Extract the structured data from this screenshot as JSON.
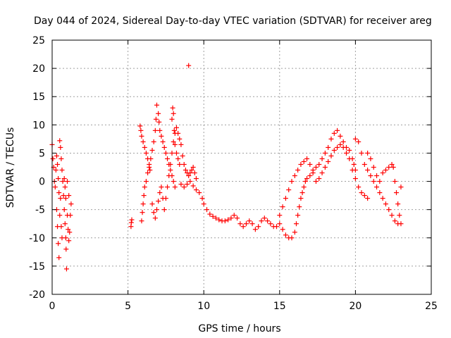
{
  "chart_data": {
    "type": "scatter",
    "title": "Day 044 of 2024, Sidereal Day-to-day VTEC variation (SDTVAR) for receiver areg",
    "xlabel": "GPS time / hours",
    "ylabel": "SDTVAR / TECUs",
    "xlim": [
      0,
      25
    ],
    "ylim": [
      -20,
      25
    ],
    "x_ticks": [
      0,
      5,
      10,
      15,
      20,
      25
    ],
    "x_tick_labels": [
      "0",
      "5",
      "10",
      "15",
      "20",
      "25"
    ],
    "y_ticks": [
      -20,
      -15,
      -10,
      -5,
      0,
      5,
      10,
      15,
      20,
      25
    ],
    "y_tick_labels": [
      "-20",
      "-15",
      "-10",
      "-5",
      "0",
      "5",
      "10",
      "15",
      "20",
      "25"
    ],
    "grid": true,
    "marker": "+",
    "marker_color": "#ff0000",
    "series": [
      {
        "name": "SDTVAR",
        "points": [
          [
            0.0,
            6.5
          ],
          [
            0.05,
            4.0
          ],
          [
            0.1,
            2.5
          ],
          [
            0.15,
            0.0
          ],
          [
            0.2,
            -1.0
          ],
          [
            0.25,
            2.0
          ],
          [
            0.3,
            4.5
          ],
          [
            0.35,
            3.0
          ],
          [
            0.4,
            0.5
          ],
          [
            0.45,
            -2.0
          ],
          [
            0.3,
            -5.0
          ],
          [
            0.35,
            -8.0
          ],
          [
            0.4,
            -11.0
          ],
          [
            0.45,
            -13.5
          ],
          [
            0.5,
            -6.0
          ],
          [
            0.55,
            -3.0
          ],
          [
            0.6,
            -8.0
          ],
          [
            0.65,
            -10.0
          ],
          [
            0.5,
            7.2
          ],
          [
            0.55,
            6.0
          ],
          [
            0.6,
            4.0
          ],
          [
            0.65,
            2.0
          ],
          [
            0.7,
            0.0
          ],
          [
            0.75,
            -2.5
          ],
          [
            0.8,
            -5.0
          ],
          [
            0.85,
            -7.5
          ],
          [
            0.9,
            -10.0
          ],
          [
            0.92,
            -12.0
          ],
          [
            0.95,
            -15.5
          ],
          [
            0.8,
            0.5
          ],
          [
            0.85,
            -1.0
          ],
          [
            0.9,
            -3.0
          ],
          [
            1.0,
            -6.0
          ],
          [
            1.05,
            -8.5
          ],
          [
            1.1,
            -10.5
          ],
          [
            1.15,
            -9.0
          ],
          [
            1.2,
            -6.0
          ],
          [
            1.25,
            -4.0
          ],
          [
            1.1,
            -2.5
          ],
          [
            1.0,
            0.0
          ],
          [
            5.2,
            -8.0
          ],
          [
            5.22,
            -7.3
          ],
          [
            5.25,
            -6.8
          ],
          [
            5.8,
            9.8
          ],
          [
            5.85,
            9.0
          ],
          [
            5.9,
            8.0
          ],
          [
            6.0,
            7.0
          ],
          [
            6.1,
            6.0
          ],
          [
            6.2,
            5.0
          ],
          [
            6.3,
            4.0
          ],
          [
            6.4,
            3.0
          ],
          [
            6.45,
            2.0
          ],
          [
            5.9,
            -7.0
          ],
          [
            5.95,
            -5.5
          ],
          [
            6.0,
            -4.0
          ],
          [
            6.05,
            -2.5
          ],
          [
            6.1,
            -1.0
          ],
          [
            6.2,
            0.0
          ],
          [
            6.3,
            1.5
          ],
          [
            6.4,
            2.5
          ],
          [
            6.5,
            4.0
          ],
          [
            6.6,
            5.5
          ],
          [
            6.7,
            7.0
          ],
          [
            6.8,
            9.0
          ],
          [
            6.85,
            11.0
          ],
          [
            6.9,
            13.5
          ],
          [
            7.0,
            12.0
          ],
          [
            7.05,
            10.5
          ],
          [
            7.1,
            9.0
          ],
          [
            7.2,
            8.0
          ],
          [
            7.3,
            7.0
          ],
          [
            7.4,
            6.0
          ],
          [
            7.5,
            5.0
          ],
          [
            7.6,
            4.0
          ],
          [
            7.7,
            3.0
          ],
          [
            7.8,
            2.0
          ],
          [
            7.9,
            1.0
          ],
          [
            8.0,
            0.0
          ],
          [
            8.1,
            -1.0
          ],
          [
            6.6,
            -4.0
          ],
          [
            6.7,
            -5.5
          ],
          [
            6.8,
            -6.5
          ],
          [
            6.9,
            -5.0
          ],
          [
            7.0,
            -3.5
          ],
          [
            7.1,
            -2.0
          ],
          [
            7.2,
            -1.0
          ],
          [
            7.3,
            -3.0
          ],
          [
            7.4,
            -5.0
          ],
          [
            7.5,
            -3.0
          ],
          [
            7.6,
            -1.0
          ],
          [
            7.7,
            1.0
          ],
          [
            7.8,
            3.0
          ],
          [
            7.9,
            5.0
          ],
          [
            8.0,
            7.0
          ],
          [
            8.1,
            8.5
          ],
          [
            8.2,
            9.5
          ],
          [
            8.3,
            8.5
          ],
          [
            8.4,
            7.5
          ],
          [
            8.5,
            6.5
          ],
          [
            8.6,
            4.5
          ],
          [
            8.7,
            3.0
          ],
          [
            8.8,
            2.0
          ],
          [
            8.9,
            1.5
          ],
          [
            9.0,
            1.0
          ],
          [
            9.1,
            1.5
          ],
          [
            9.2,
            2.0
          ],
          [
            9.3,
            2.5
          ],
          [
            9.4,
            1.5
          ],
          [
            9.5,
            0.5
          ],
          [
            7.9,
            11.0
          ],
          [
            7.95,
            13.0
          ],
          [
            8.0,
            12.0
          ],
          [
            8.05,
            9.0
          ],
          [
            8.1,
            6.5
          ],
          [
            8.2,
            5.0
          ],
          [
            8.3,
            4.0
          ],
          [
            8.4,
            3.0
          ],
          [
            9.0,
            20.5
          ],
          [
            8.5,
            -0.5
          ],
          [
            8.7,
            -1.0
          ],
          [
            8.9,
            -0.5
          ],
          [
            9.1,
            0.0
          ],
          [
            9.3,
            -0.8
          ],
          [
            9.5,
            -1.5
          ],
          [
            9.7,
            -2.0
          ],
          [
            9.9,
            -3.0
          ],
          [
            10.0,
            -4.0
          ],
          [
            10.2,
            -5.0
          ],
          [
            10.4,
            -5.8
          ],
          [
            10.6,
            -6.2
          ],
          [
            10.8,
            -6.5
          ],
          [
            11.0,
            -6.8
          ],
          [
            11.2,
            -7.0
          ],
          [
            11.4,
            -7.0
          ],
          [
            11.6,
            -6.8
          ],
          [
            11.8,
            -6.5
          ],
          [
            12.0,
            -6.0
          ],
          [
            12.2,
            -6.5
          ],
          [
            12.4,
            -7.5
          ],
          [
            12.6,
            -8.0
          ],
          [
            12.8,
            -7.5
          ],
          [
            13.0,
            -7.0
          ],
          [
            13.2,
            -7.5
          ],
          [
            13.4,
            -8.5
          ],
          [
            13.6,
            -8.0
          ],
          [
            13.8,
            -7.0
          ],
          [
            14.0,
            -6.5
          ],
          [
            14.2,
            -7.0
          ],
          [
            14.4,
            -7.5
          ],
          [
            14.6,
            -8.0
          ],
          [
            14.8,
            -8.0
          ],
          [
            15.0,
            -7.5
          ],
          [
            15.2,
            -8.5
          ],
          [
            15.4,
            -9.5
          ],
          [
            15.6,
            -10.0
          ],
          [
            15.8,
            -10.0
          ],
          [
            16.0,
            -9.0
          ],
          [
            16.1,
            -7.5
          ],
          [
            16.2,
            -6.0
          ],
          [
            16.3,
            -4.5
          ],
          [
            16.4,
            -3.0
          ],
          [
            16.5,
            -2.0
          ],
          [
            16.6,
            -1.0
          ],
          [
            16.7,
            0.0
          ],
          [
            16.8,
            0.5
          ],
          [
            17.0,
            1.0
          ],
          [
            17.2,
            2.0
          ],
          [
            17.4,
            2.5
          ],
          [
            17.6,
            3.0
          ],
          [
            17.8,
            4.0
          ],
          [
            18.0,
            5.0
          ],
          [
            18.2,
            6.0
          ],
          [
            18.4,
            7.5
          ],
          [
            18.6,
            8.5
          ],
          [
            18.8,
            9.0
          ],
          [
            19.0,
            8.0
          ],
          [
            19.2,
            7.0
          ],
          [
            19.4,
            6.0
          ],
          [
            19.6,
            5.5
          ],
          [
            19.8,
            4.0
          ],
          [
            19.9,
            3.0
          ],
          [
            20.0,
            2.0
          ],
          [
            15.0,
            -6.0
          ],
          [
            15.2,
            -4.5
          ],
          [
            15.4,
            -3.0
          ],
          [
            15.6,
            -1.5
          ],
          [
            15.8,
            0.0
          ],
          [
            16.0,
            1.0
          ],
          [
            16.2,
            2.0
          ],
          [
            16.4,
            3.0
          ],
          [
            16.6,
            3.5
          ],
          [
            16.8,
            4.0
          ],
          [
            17.0,
            3.0
          ],
          [
            17.2,
            1.5
          ],
          [
            17.4,
            0.0
          ],
          [
            17.6,
            0.5
          ],
          [
            17.8,
            1.5
          ],
          [
            18.0,
            2.5
          ],
          [
            18.2,
            3.5
          ],
          [
            18.4,
            4.5
          ],
          [
            18.6,
            5.5
          ],
          [
            18.8,
            6.0
          ],
          [
            19.0,
            6.5
          ],
          [
            19.2,
            6.0
          ],
          [
            19.4,
            5.0
          ],
          [
            19.6,
            4.0
          ],
          [
            19.8,
            2.0
          ],
          [
            20.0,
            0.5
          ],
          [
            20.2,
            -1.0
          ],
          [
            20.4,
            -2.0
          ],
          [
            20.6,
            -2.5
          ],
          [
            20.8,
            -3.0
          ],
          [
            20.0,
            7.5
          ],
          [
            20.2,
            7.0
          ],
          [
            20.4,
            5.0
          ],
          [
            20.6,
            3.0
          ],
          [
            20.8,
            2.0
          ],
          [
            21.0,
            1.0
          ],
          [
            21.2,
            0.0
          ],
          [
            21.4,
            -1.0
          ],
          [
            21.6,
            -2.0
          ],
          [
            21.8,
            -3.0
          ],
          [
            22.0,
            -4.0
          ],
          [
            22.2,
            -5.0
          ],
          [
            22.4,
            -6.0
          ],
          [
            22.6,
            -7.0
          ],
          [
            22.8,
            -7.5
          ],
          [
            20.8,
            5.0
          ],
          [
            21.0,
            4.0
          ],
          [
            21.2,
            2.5
          ],
          [
            21.4,
            1.0
          ],
          [
            21.6,
            0.0
          ],
          [
            21.8,
            1.5
          ],
          [
            22.0,
            2.0
          ],
          [
            22.2,
            2.5
          ],
          [
            22.4,
            3.0
          ],
          [
            22.5,
            2.5
          ],
          [
            22.6,
            0.0
          ],
          [
            22.7,
            -2.0
          ],
          [
            22.8,
            -4.0
          ],
          [
            22.9,
            -6.0
          ],
          [
            23.0,
            -7.5
          ],
          [
            23.0,
            -1.0
          ]
        ]
      }
    ]
  }
}
